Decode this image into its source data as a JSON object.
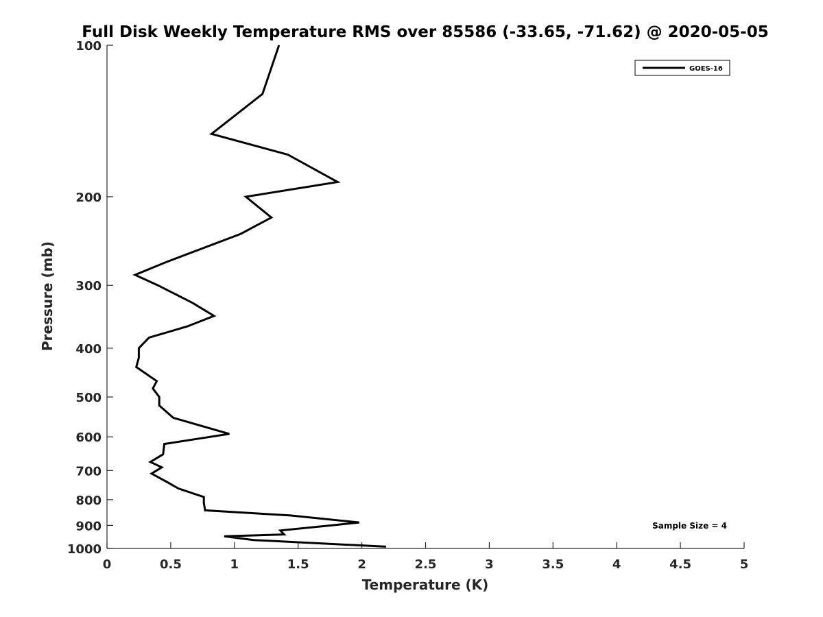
{
  "chart_data": {
    "type": "line",
    "title": "Full Disk Weekly Temperature RMS over 85586 (-33.65, -71.62) @ 2020-05-05",
    "xlabel": "Temperature (K)",
    "ylabel": "Pressure (mb)",
    "xlim": [
      0,
      5
    ],
    "ylim": [
      100,
      1000
    ],
    "y_scale": "log",
    "y_reversed": true,
    "x_ticks": [
      "0",
      "0.5",
      "1",
      "1.5",
      "2",
      "2.5",
      "3",
      "3.5",
      "4",
      "4.5",
      "5"
    ],
    "y_ticks": [
      "100",
      "200",
      "300",
      "400",
      "500",
      "600",
      "700",
      "800",
      "900",
      "1000"
    ],
    "grid": false,
    "legend_position": "top-right",
    "annotation": "Sample Size = 4",
    "series": [
      {
        "name": "GOES-16",
        "color": "#000000",
        "points": [
          [
            1.35,
            100
          ],
          [
            1.22,
            125
          ],
          [
            0.82,
            150
          ],
          [
            1.42,
            165
          ],
          [
            1.81,
            187
          ],
          [
            1.09,
            200
          ],
          [
            1.29,
            220
          ],
          [
            1.05,
            237
          ],
          [
            0.46,
            270
          ],
          [
            0.22,
            286
          ],
          [
            0.4,
            300
          ],
          [
            0.67,
            325
          ],
          [
            0.84,
            345
          ],
          [
            0.63,
            362
          ],
          [
            0.33,
            381
          ],
          [
            0.25,
            400
          ],
          [
            0.25,
            418
          ],
          [
            0.23,
            436
          ],
          [
            0.39,
            465
          ],
          [
            0.36,
            481
          ],
          [
            0.41,
            500
          ],
          [
            0.41,
            520
          ],
          [
            0.52,
            550
          ],
          [
            0.96,
            592
          ],
          [
            0.45,
            620
          ],
          [
            0.44,
            650
          ],
          [
            0.34,
            673
          ],
          [
            0.43,
            690
          ],
          [
            0.35,
            710
          ],
          [
            0.48,
            740
          ],
          [
            0.56,
            760
          ],
          [
            0.76,
            790
          ],
          [
            0.76,
            812
          ],
          [
            0.77,
            840
          ],
          [
            1.44,
            860
          ],
          [
            1.98,
            888
          ],
          [
            1.76,
            900
          ],
          [
            1.36,
            921
          ],
          [
            1.39,
            938
          ],
          [
            0.92,
            946
          ],
          [
            1.15,
            962
          ],
          [
            2.19,
            992
          ]
        ]
      }
    ]
  }
}
